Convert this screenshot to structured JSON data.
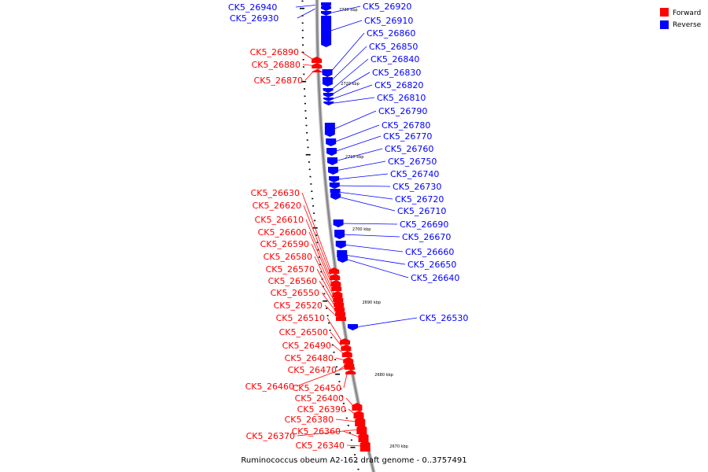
{
  "caption": "Ruminococcus obeum A2-162 draft genome - 0..3757491",
  "legend": [
    {
      "label": "Forward",
      "color": "#ff0000"
    },
    {
      "label": "Reverse",
      "color": "#0000ff"
    }
  ],
  "colors": {
    "forward": "#ff0000",
    "reverse": "#0000ff",
    "backbone": "#888888"
  },
  "ticks": [
    {
      "label": "2730 kbp"
    },
    {
      "label": "2720 kbp"
    },
    {
      "label": "2710 kbp"
    },
    {
      "label": "2700 kbp"
    },
    {
      "label": "2690 kbp"
    },
    {
      "label": "2680 kbp"
    },
    {
      "label": "2670 kbp"
    }
  ],
  "reverse_genes": [
    "CK5_26940",
    "CK5_26930",
    "CK5_26920",
    "CK5_26910",
    "CK5_26860",
    "CK5_26850",
    "CK5_26840",
    "CK5_26830",
    "CK5_26820",
    "CK5_26810",
    "CK5_26790",
    "CK5_26780",
    "CK5_26770",
    "CK5_26760",
    "CK5_26750",
    "CK5_26740",
    "CK5_26730",
    "CK5_26720",
    "CK5_26710",
    "CK5_26690",
    "CK5_26670",
    "CK5_26660",
    "CK5_26650",
    "CK5_26640",
    "CK5_26530"
  ],
  "forward_genes": [
    "CK5_26890",
    "CK5_26880",
    "CK5_26870",
    "CK5_26630",
    "CK5_26620",
    "CK5_26610",
    "CK5_26600",
    "CK5_26590",
    "CK5_26580",
    "CK5_26570",
    "CK5_26560",
    "CK5_26550",
    "CK5_26520",
    "CK5_26510",
    "CK5_26500",
    "CK5_26490",
    "CK5_26480",
    "CK5_26470",
    "CK5_26460",
    "CK5_26450",
    "CK5_26400",
    "CK5_26390",
    "CK5_26380",
    "CK5_26370",
    "CK5_26360",
    "CK5_26340"
  ]
}
